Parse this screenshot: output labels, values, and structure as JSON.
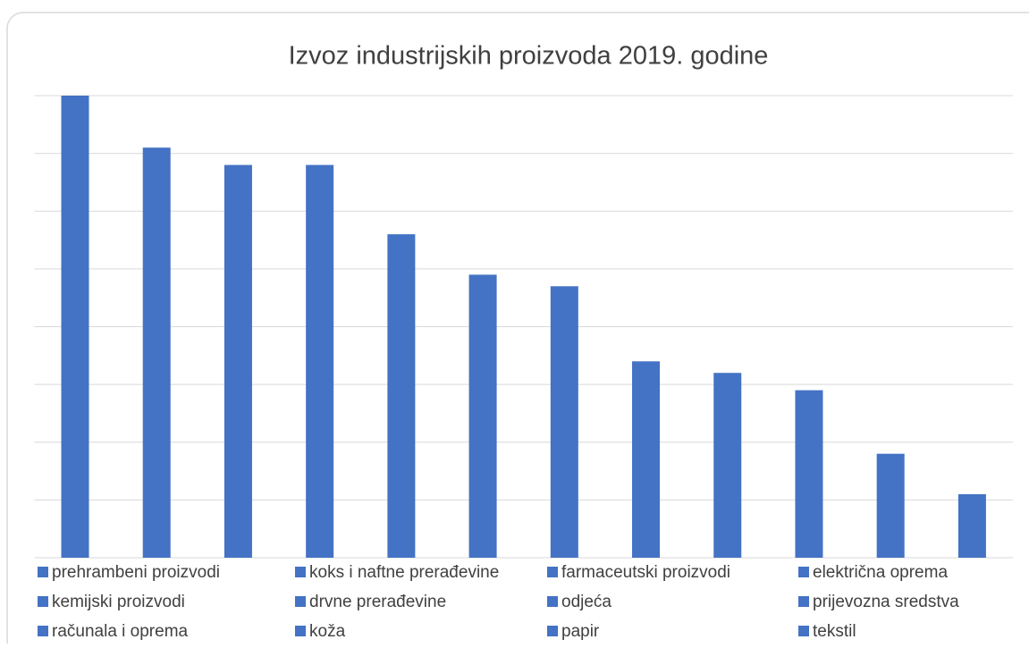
{
  "chart_data": {
    "type": "bar",
    "title": "Izvoz industrijskih proizvoda 2019. godine",
    "categories": [
      "prehrambeni proizvodi",
      "koks i naftne prerađevine",
      "farmaceutski proizvodi",
      "električna oprema",
      "kemijski proizvodi",
      "drvne prerađevine",
      "odjeća",
      "prijevozna sredstva",
      "računala i oprema",
      "koža",
      "papir",
      "tekstil"
    ],
    "values": [
      8.0,
      7.1,
      6.8,
      6.8,
      5.6,
      4.9,
      4.7,
      3.4,
      3.2,
      2.9,
      1.8,
      1.1
    ],
    "color": "#4472c4",
    "ylim": [
      0,
      8
    ],
    "yticks": [
      0,
      1,
      2,
      3,
      4,
      5,
      6,
      7,
      8
    ],
    "grid": true,
    "legend": "bottom"
  }
}
